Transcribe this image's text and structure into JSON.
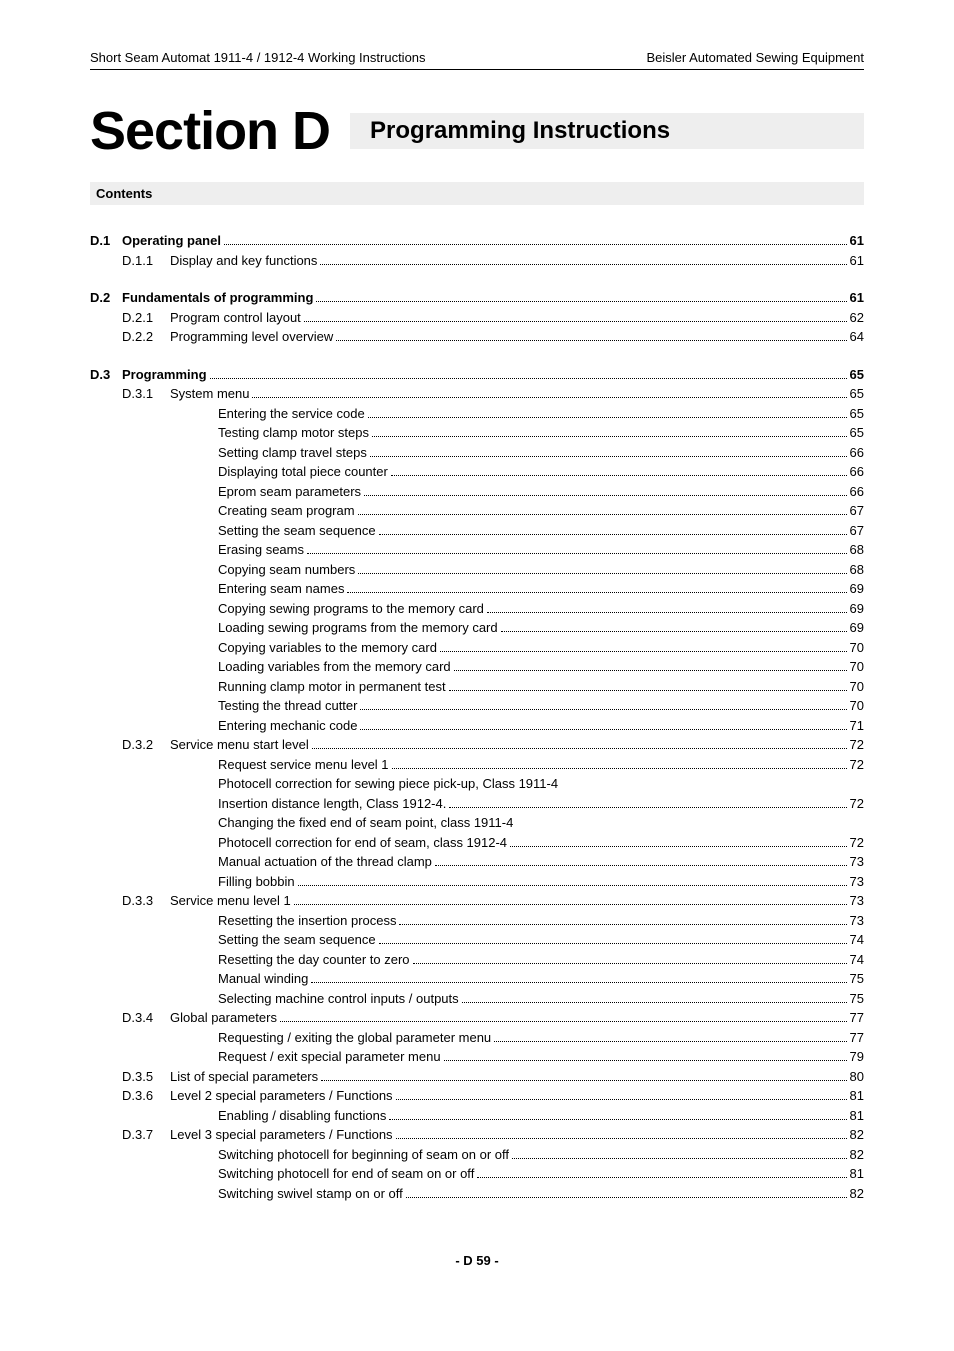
{
  "header": {
    "left": "Short Seam Automat 1911-4 / 1912-4 Working Instructions",
    "right": "Beisler Automated Sewing Equipment"
  },
  "title": {
    "section": "Section D",
    "subtitle": "Programming Instructions"
  },
  "contents_label": "Contents",
  "footer": "- D 59 -",
  "toc": {
    "d1": {
      "num": "D.1",
      "label": "Operating panel",
      "page": "61",
      "d11": {
        "num": "D.1.1",
        "label": "Display and key functions",
        "page": "61"
      }
    },
    "d2": {
      "num": "D.2",
      "label": "Fundamentals of programming",
      "page": "61",
      "d21": {
        "num": "D.2.1",
        "label": "Program control layout",
        "page": "62"
      },
      "d22": {
        "num": "D.2.2",
        "label": "Programming level overview",
        "page": "64"
      }
    },
    "d3": {
      "num": "D.3",
      "label": "Programming",
      "page": "65",
      "d31": {
        "num": "D.3.1",
        "label": "System menu",
        "page": "65",
        "s": [
          {
            "label": "Entering the service code",
            "page": "65"
          },
          {
            "label": "Testing clamp motor steps",
            "page": "65"
          },
          {
            "label": "Setting clamp travel steps",
            "page": "66"
          },
          {
            "label": "Displaying total piece counter",
            "page": "66"
          },
          {
            "label": "Eprom seam parameters",
            "page": "66"
          },
          {
            "label": "Creating seam program",
            "page": "67"
          },
          {
            "label": "Setting the seam sequence",
            "page": "67"
          },
          {
            "label": "Erasing seams",
            "page": "68"
          },
          {
            "label": "Copying seam numbers",
            "page": "68"
          },
          {
            "label": "Entering seam names",
            "page": "69"
          },
          {
            "label": "Copying sewing programs to the memory card",
            "page": "69"
          },
          {
            "label": "Loading sewing programs from the memory card",
            "page": "69"
          },
          {
            "label": "Copying variables to the memory card",
            "page": "70"
          },
          {
            "label": "Loading variables from the memory card",
            "page": "70"
          },
          {
            "label": "Running clamp motor in permanent test",
            "page": "70"
          },
          {
            "label": "Testing the thread cutter",
            "page": "70"
          },
          {
            "label": "Entering mechanic code",
            "page": "71"
          }
        ]
      },
      "d32": {
        "num": "D.3.2",
        "label": "Service menu start level",
        "page": "72",
        "s": [
          {
            "label": "Request service menu level 1",
            "page": "72"
          },
          {
            "label": "Photocell correction for sewing piece pick-up, Class 1911-4",
            "nodots": true
          },
          {
            "label": "Insertion distance length, Class 1912-4.",
            "page": "72"
          },
          {
            "label": "Changing the fixed end of seam point, class 1911-4",
            "nodots": true
          },
          {
            "label": "Photocell correction for end of seam, class 1912-4",
            "page": "72"
          },
          {
            "label": "Manual actuation of the thread clamp",
            "page": "73"
          },
          {
            "label": "Filling bobbin",
            "page": "73"
          }
        ]
      },
      "d33": {
        "num": "D.3.3",
        "label": "Service menu level 1",
        "page": "73",
        "s": [
          {
            "label": "Resetting the insertion process",
            "page": "73"
          },
          {
            "label": "Setting the seam sequence",
            "page": "74"
          },
          {
            "label": "Resetting the day counter to zero",
            "page": "74"
          },
          {
            "label": "Manual winding",
            "page": "75"
          },
          {
            "label": "Selecting machine control inputs / outputs",
            "page": "75"
          }
        ]
      },
      "d34": {
        "num": "D.3.4",
        "label": "Global parameters",
        "page": "77",
        "s": [
          {
            "label": "Requesting / exiting the global parameter menu",
            "page": "77"
          },
          {
            "label": "Request / exit special parameter menu",
            "page": "79"
          }
        ]
      },
      "d35": {
        "num": "D.3.5",
        "label": "List of special parameters",
        "page": "80"
      },
      "d36": {
        "num": "D.3.6",
        "label": "Level 2 special parameters / Functions",
        "page": "81",
        "s": [
          {
            "label": "Enabling / disabling functions",
            "page": "81"
          }
        ]
      },
      "d37": {
        "num": "D.3.7",
        "label": "Level 3 special parameters / Functions",
        "page": "82",
        "s": [
          {
            "label": "Switching photocell for beginning of seam on or off",
            "page": "82"
          },
          {
            "label": "Switching photocell for end of seam on or off",
            "page": "81"
          },
          {
            "label": "Switching swivel stamp on or off",
            "page": "82"
          }
        ]
      }
    }
  }
}
